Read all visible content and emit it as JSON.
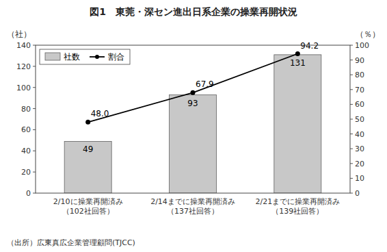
{
  "chart_data": {
    "type": "bar",
    "title": "図1　東莞・深セン進出日系企業の操業再開状況",
    "categories": [
      "2/10に操業再開済み\n（102社回答）",
      "2/14までに操業再開済み\n（137社回答）",
      "2/21までに操業再開済み\n（139社回答）"
    ],
    "series": [
      {
        "name": "社数",
        "type": "bar",
        "color": "#c8c8c8",
        "values": [
          49,
          93,
          131
        ]
      },
      {
        "name": "割合",
        "type": "line",
        "axis": "y2",
        "color": "#000000",
        "marker": "circle",
        "values": [
          48.0,
          67.9,
          94.2
        ],
        "value_labels": [
          "48.0",
          "67.9",
          "94.2"
        ]
      }
    ],
    "ylabel": "（社）",
    "y2label": "（％）",
    "ylim": [
      0,
      140
    ],
    "yticks": [
      0,
      20,
      40,
      60,
      80,
      100,
      120,
      140
    ],
    "y2lim": [
      0,
      100
    ],
    "y2ticks": [
      0,
      10,
      20,
      30,
      40,
      50,
      60,
      70,
      80,
      90,
      100
    ],
    "legend": "upper left",
    "grid": false,
    "data_labels": true,
    "source": "（出所）広東真広企業管理顧問(TJCC)"
  }
}
